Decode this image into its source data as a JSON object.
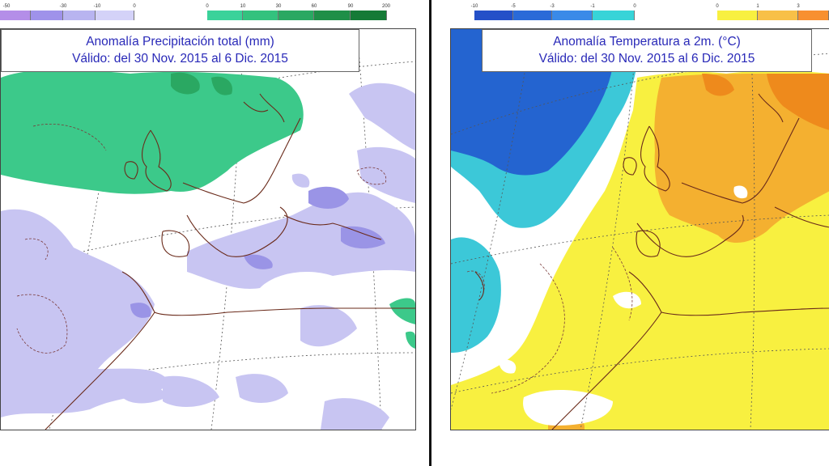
{
  "left_panel": {
    "title_line1": "Anomalía Precipitación total (mm)",
    "title_line2": "Válido: del 30 Nov. 2015 al 6 Dic. 2015",
    "negative_scale": {
      "ticks": [
        "-50",
        "-30",
        "-10",
        "0"
      ],
      "colors": [
        "#b48ee8",
        "#9f92ea",
        "#b8b4f0",
        "#d4d2f8"
      ]
    },
    "positive_scale": {
      "ticks": [
        "0",
        "10",
        "30",
        "60",
        "90",
        "200"
      ],
      "colors": [
        "#3ad29a",
        "#33c27e",
        "#2aa862",
        "#1f8f48",
        "#157a36"
      ]
    },
    "colors": {
      "dry_fill": "#c8c5f2",
      "wet_fill": "#3cc98a",
      "land_line": "#6a2a1a"
    }
  },
  "right_panel": {
    "title_line1": "Anomalía Temperatura a 2m. (°C)",
    "title_line2": "Válido: del 30 Nov. 2015 al 6 Dic. 2015",
    "negative_scale": {
      "ticks": [
        "-10",
        "-5",
        "-3",
        "-1",
        "0"
      ],
      "colors": [
        "#2450c8",
        "#2a6ad8",
        "#3a8ae8",
        "#37d4d8"
      ]
    },
    "positive_scale": {
      "ticks": [
        "0",
        "1",
        "3"
      ],
      "colors": [
        "#f8f040",
        "#f8c048",
        "#f89030",
        "#f06a14"
      ]
    },
    "colors": {
      "cold_deep": "#2464d0",
      "cold": "#3cc8d8",
      "warm1": "#f8f040",
      "warm2": "#f4b030",
      "warm3": "#ee8a1c"
    }
  }
}
